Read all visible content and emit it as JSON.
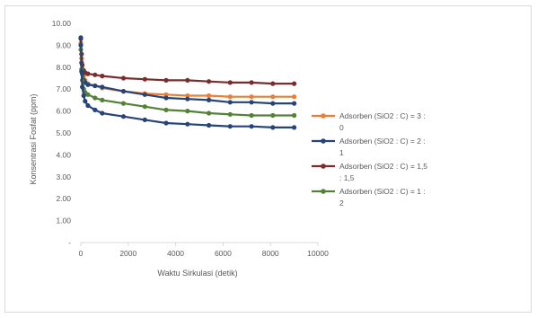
{
  "chart_data": {
    "type": "line",
    "title": "",
    "xlabel": "Waktu Sirkulasi (detik)",
    "ylabel": "Konsentrasi Fosfat (ppm)",
    "xlim": [
      0,
      10000
    ],
    "ylim": [
      0,
      10
    ],
    "yticks": [
      "-",
      "1.00",
      "2.00",
      "3.00",
      "4.00",
      "5.00",
      "6.00",
      "7.00",
      "8.00",
      "9.00",
      "10.00"
    ],
    "xticks": [
      "0",
      "2000",
      "4000",
      "6000",
      "8000",
      "10000"
    ],
    "grid": false,
    "legend": "right",
    "series": [
      {
        "name": "Adsorben (SiO2 : C) = 3 : 0",
        "legend_lines": [
          "Adsorben (SiO2 : C) = 3 :",
          "0"
        ],
        "color": "#ED7D31",
        "x": [
          0,
          30,
          60,
          120,
          180,
          300,
          600,
          900,
          1800,
          2700,
          3600,
          4500,
          5400,
          6300,
          7200,
          8100,
          9000
        ],
        "y": [
          9.1,
          8.4,
          7.9,
          7.6,
          7.4,
          7.25,
          7.15,
          7.05,
          6.9,
          6.8,
          6.75,
          6.7,
          6.7,
          6.65,
          6.65,
          6.65,
          6.65
        ]
      },
      {
        "name": "Adsorben (SiO2 : C) = 2 : 1",
        "legend_lines": [
          "Adsorben (SiO2 : C) = 2 :",
          "1"
        ],
        "color": "#264478",
        "x": [
          0,
          30,
          60,
          120,
          180,
          300,
          600,
          900,
          1800,
          2700,
          3600,
          4500,
          5400,
          6300,
          7200,
          8100,
          9000
        ],
        "y": [
          9.0,
          8.2,
          7.7,
          7.4,
          7.3,
          7.2,
          7.15,
          7.1,
          6.9,
          6.75,
          6.6,
          6.55,
          6.5,
          6.4,
          6.4,
          6.35,
          6.35
        ]
      },
      {
        "name": "Adsorben (SiO2 : C) = 1,5 : 1,5",
        "legend_lines": [
          "Adsorben (SiO2 : C) = 1,5",
          ": 1,5"
        ],
        "color": "#7B2C2C",
        "x": [
          0,
          30,
          60,
          120,
          180,
          300,
          600,
          900,
          1800,
          2700,
          3600,
          4500,
          5400,
          6300,
          7200,
          8100,
          9000
        ],
        "y": [
          9.3,
          8.6,
          8.1,
          7.85,
          7.75,
          7.7,
          7.65,
          7.6,
          7.5,
          7.45,
          7.4,
          7.4,
          7.35,
          7.3,
          7.3,
          7.25,
          7.25
        ]
      },
      {
        "name": "Adsorben (SiO2 : C) = 1 : 2",
        "legend_lines": [
          "Adsorben (SiO2 : C) = 1 :",
          "2"
        ],
        "color": "#548235",
        "x": [
          0,
          30,
          60,
          120,
          180,
          300,
          600,
          900,
          1800,
          2700,
          3600,
          4500,
          5400,
          6300,
          7200,
          8100,
          9000
        ],
        "y": [
          8.8,
          7.9,
          7.4,
          7.0,
          6.85,
          6.75,
          6.6,
          6.5,
          6.35,
          6.2,
          6.05,
          6.0,
          5.9,
          5.85,
          5.8,
          5.8,
          5.8
        ]
      },
      {
        "name": "",
        "color": "#264478",
        "x": [
          0,
          30,
          60,
          120,
          180,
          300,
          600,
          900,
          1800,
          2700,
          3600,
          4500,
          5400,
          6300,
          7200,
          8100,
          9000
        ],
        "y": [
          9.35,
          7.8,
          7.1,
          6.7,
          6.45,
          6.25,
          6.05,
          5.9,
          5.75,
          5.6,
          5.45,
          5.4,
          5.35,
          5.3,
          5.3,
          5.25,
          5.25
        ]
      }
    ]
  }
}
